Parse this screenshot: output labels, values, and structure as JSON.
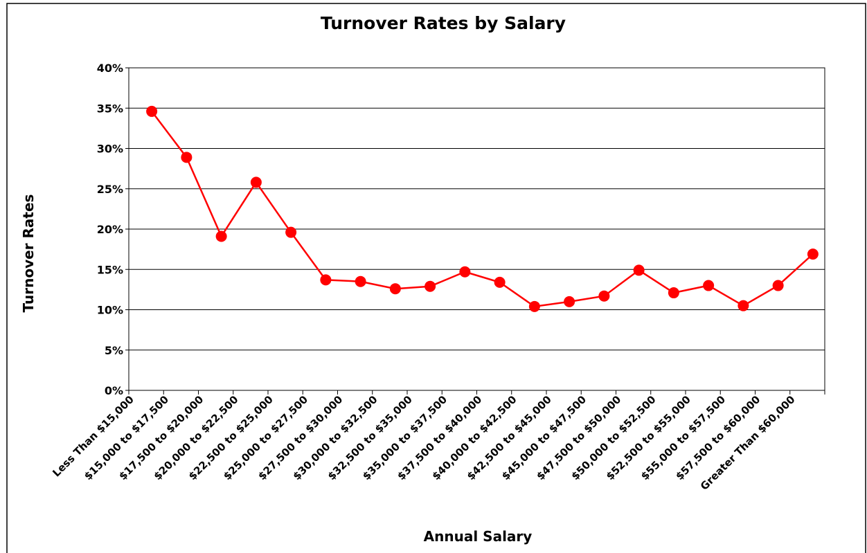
{
  "chart_data": {
    "type": "line",
    "title": "Turnover Rates by Salary",
    "x_label": "Annual Salary",
    "y_label": "Turnover Rates",
    "categories": [
      "Less Than $15,000",
      "$15,000 to $17,500",
      "$17,500 to $20,000",
      "$20,000 to $22,500",
      "$22,500 to $25,000",
      "$25,000 to $27,500",
      "$27,500 to $30,000",
      "$30,000 to $32,500",
      "$32,500 to $35,000",
      "$35,000 to $37,500",
      "$37,500 to $40,000",
      "$40,000 to $42,500",
      "$42,500 to $45,000",
      "$45,000 to $47,500",
      "$47,500 to $50,000",
      "$50,000 to $52,500",
      "$52,500 to $55,000",
      "$55,000 to $57,500",
      "$57,500 to $60,000",
      "Greater Than $60,000"
    ],
    "values": [
      34.6,
      28.9,
      19.1,
      25.8,
      19.6,
      13.7,
      13.5,
      12.6,
      12.9,
      14.7,
      13.4,
      10.4,
      11.0,
      11.7,
      14.9,
      12.1,
      13.0,
      10.5,
      13.0,
      16.9
    ],
    "color": "#ff0000",
    "ylim": [
      0,
      40
    ],
    "yticks": [
      {
        "value": 0,
        "label": "0%"
      },
      {
        "value": 5,
        "label": "5%"
      },
      {
        "value": 10,
        "label": "10%"
      },
      {
        "value": 15,
        "label": "15%"
      },
      {
        "value": 20,
        "label": "20%"
      },
      {
        "value": 25,
        "label": "25%"
      },
      {
        "value": 30,
        "label": "30%"
      },
      {
        "value": 35,
        "label": "35%"
      },
      {
        "value": 40,
        "label": "40%"
      }
    ],
    "grid": true
  }
}
